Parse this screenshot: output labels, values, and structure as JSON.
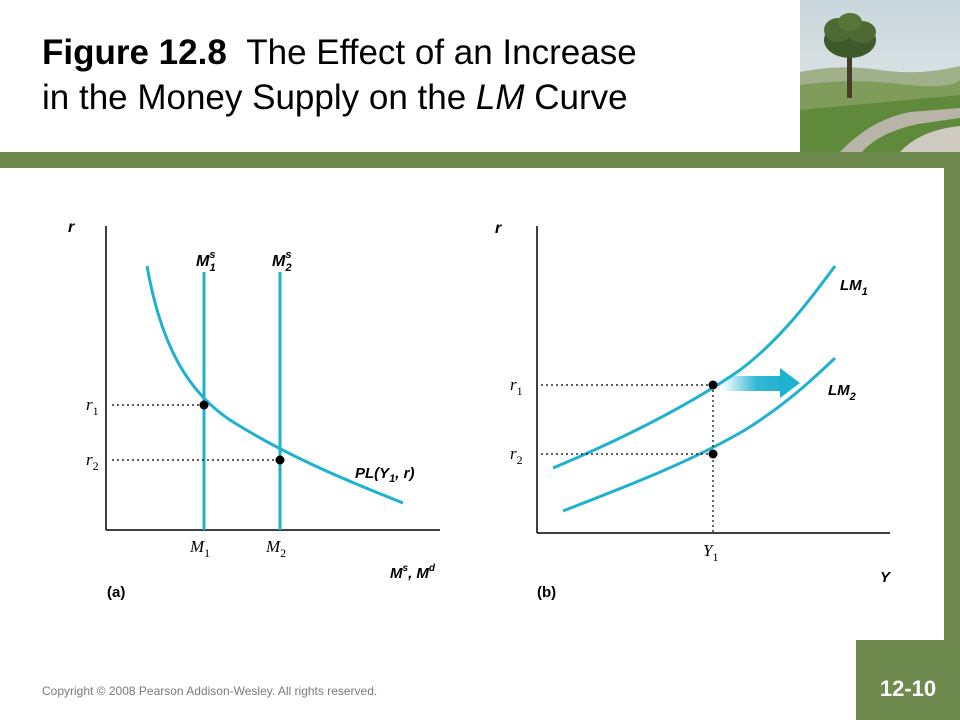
{
  "header": {
    "title_bold": "Figure 12.8",
    "title_rest_1": "The Effect of an Increase",
    "title_rest_2a": "in the Money Supply on the ",
    "title_italic": "LM",
    "title_rest_2b": " Curve"
  },
  "panel_a": {
    "y_axis_label": "r",
    "x_axis_label": "M",
    "x_axis_label_sup1": "s",
    "x_axis_label_mid": ", M",
    "x_axis_label_sup2": "d",
    "supply1": "M",
    "supply1_sup": "s",
    "supply1_sub": "1",
    "supply2": "M",
    "supply2_sup": "s",
    "supply2_sub": "2",
    "r1": "r",
    "r1_sub": "1",
    "r2": "r",
    "r2_sub": "2",
    "m1": "M",
    "m1_sub": "1",
    "m2": "M",
    "m2_sub": "2",
    "demand_label": "PL(Y",
    "demand_label_sub": "1",
    "demand_label_end": ", r)",
    "panel_label": "(a)"
  },
  "panel_b": {
    "y_axis_label": "r",
    "x_axis_label": "Y",
    "lm1": "LM",
    "lm1_sub": "1",
    "lm2": "LM",
    "lm2_sub": "2",
    "r1": "r",
    "r1_sub": "1",
    "r2": "r",
    "r2_sub": "2",
    "y1": "Y",
    "y1_sub": "1",
    "panel_label": "(b)"
  },
  "footer": {
    "copyright": "Copyright © 2008 Pearson Addison-Wesley. All rights reserved.",
    "page_number": "12-10"
  },
  "colors": {
    "curve": "#1eb1d0",
    "accent_green": "#6e8a4e"
  }
}
